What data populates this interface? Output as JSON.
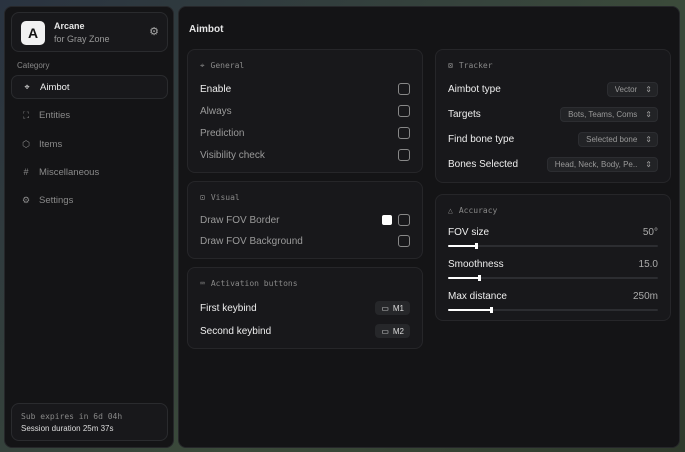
{
  "sidebar": {
    "brand": {
      "logo": "A",
      "name": "Arcane",
      "subtitle": "for Gray Zone",
      "settings_icon": "gear-icon"
    },
    "category_label": "Category",
    "items": [
      {
        "label": "Aimbot",
        "icon": "crosshair-icon",
        "active": true
      },
      {
        "label": "Entities",
        "icon": "entities-icon"
      },
      {
        "label": "Items",
        "icon": "box-icon"
      },
      {
        "label": "Miscellaneous",
        "icon": "hash-icon"
      },
      {
        "label": "Settings",
        "icon": "gear-icon"
      }
    ],
    "footer": {
      "sub": "Sub expires in 6d 04h",
      "session": "Session duration 25m 37s"
    }
  },
  "main": {
    "title": "Aimbot",
    "general": {
      "title": "General",
      "items": [
        {
          "label": "Enable",
          "checked": false
        },
        {
          "label": "Always",
          "checked": false
        },
        {
          "label": "Prediction",
          "checked": false
        },
        {
          "label": "Visibility check",
          "checked": false
        }
      ]
    },
    "visual": {
      "title": "Visual",
      "items": [
        {
          "label": "Draw FOV Border",
          "checked": false,
          "color": "#ffffff"
        },
        {
          "label": "Draw FOV Background",
          "checked": false
        }
      ]
    },
    "activation": {
      "title": "Activation buttons",
      "items": [
        {
          "label": "First keybind",
          "key": "M1"
        },
        {
          "label": "Second keybind",
          "key": "M2"
        }
      ]
    },
    "tracker": {
      "title": "Tracker",
      "items": [
        {
          "label": "Aimbot type",
          "value": "Vector"
        },
        {
          "label": "Targets",
          "value": "Bots, Teams, Coms"
        },
        {
          "label": "Find bone type",
          "value": "Selected bone"
        },
        {
          "label": "Bones Selected",
          "value": "Head, Neck, Body, Pe.."
        }
      ]
    },
    "accuracy": {
      "title": "Accuracy",
      "sliders": [
        {
          "label": "FOV size",
          "value": "50°",
          "fraction": 0.14
        },
        {
          "label": "Smoothness",
          "value": "15.0",
          "fraction": 0.15
        },
        {
          "label": "Max distance",
          "value": "250m",
          "fraction": 0.21
        }
      ]
    }
  }
}
